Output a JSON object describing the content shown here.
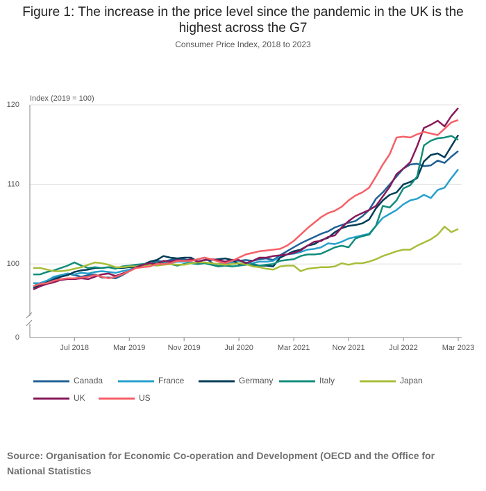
{
  "chart_data": {
    "type": "line",
    "title": "Figure 1: The increase in the price level since the pandemic in the UK is the highest across the G7",
    "subtitle": "Consumer Price Index, 2018 to 2023",
    "y_label": "Index (2019 = 100)",
    "source": "Source: Organisation for Economic Co-operation and Development (OECD and the Office for National Statistics",
    "x": [
      "2018-01",
      "2018-02",
      "2018-03",
      "2018-04",
      "2018-05",
      "2018-06",
      "2018-07",
      "2018-08",
      "2018-09",
      "2018-10",
      "2018-11",
      "2018-12",
      "2019-01",
      "2019-02",
      "2019-03",
      "2019-04",
      "2019-05",
      "2019-06",
      "2019-07",
      "2019-08",
      "2019-09",
      "2019-10",
      "2019-11",
      "2019-12",
      "2020-01",
      "2020-02",
      "2020-03",
      "2020-04",
      "2020-05",
      "2020-06",
      "2020-07",
      "2020-08",
      "2020-09",
      "2020-10",
      "2020-11",
      "2020-12",
      "2021-01",
      "2021-02",
      "2021-03",
      "2021-04",
      "2021-05",
      "2021-06",
      "2021-07",
      "2021-08",
      "2021-09",
      "2021-10",
      "2021-11",
      "2021-12",
      "2022-01",
      "2022-02",
      "2022-03",
      "2022-04",
      "2022-05",
      "2022-06",
      "2022-07",
      "2022-08",
      "2022-09",
      "2022-10",
      "2022-11",
      "2022-12",
      "2023-01",
      "2023-02",
      "2023-03"
    ],
    "xlim": [
      "2018-01",
      "2023-03"
    ],
    "xticks": [
      {
        "value": "2018-07",
        "label": "Jul 2018"
      },
      {
        "value": "2019-03",
        "label": "Mar 2019"
      },
      {
        "value": "2019-11",
        "label": "Nov 2019"
      },
      {
        "value": "2020-07",
        "label": "Jul 2020"
      },
      {
        "value": "2021-03",
        "label": "Mar 2021"
      },
      {
        "value": "2021-11",
        "label": "Nov 2021"
      },
      {
        "value": "2022-07",
        "label": "Jul 2022"
      },
      {
        "value": "2023-03",
        "label": "Mar 2023"
      }
    ],
    "ylim": [
      0,
      120
    ],
    "yticks": [
      0,
      100,
      110,
      120
    ],
    "y_break": [
      0,
      96
    ],
    "grid": true,
    "series": [
      {
        "name": "Canada",
        "color": "#206095",
        "values": [
          97.2,
          97.6,
          97.9,
          98.2,
          98.6,
          98.8,
          98.6,
          98.4,
          98.6,
          98.7,
          98.3,
          98.3,
          98.2,
          98.6,
          99.1,
          99.6,
          99.9,
          100.0,
          100.4,
          100.3,
          100.5,
          100.7,
          100.6,
          100.4,
          100.6,
          100.8,
          100.2,
          99.7,
          100.0,
          100.3,
          100.4,
          100.5,
          100.4,
          100.6,
          100.7,
          100.5,
          101.1,
          101.6,
          102.1,
          102.6,
          103.0,
          103.4,
          103.8,
          104.1,
          104.6,
          104.9,
          105.2,
          105.4,
          106.0,
          106.8,
          108.2,
          109.0,
          110.0,
          111.0,
          112.0,
          112.5,
          112.6,
          112.3,
          112.4,
          113.0,
          112.7,
          113.5,
          114.2
        ]
      },
      {
        "name": "France",
        "color": "#27a0cc",
        "values": [
          97.6,
          97.6,
          97.9,
          98.4,
          98.6,
          98.8,
          98.7,
          98.9,
          98.8,
          99.0,
          99.1,
          99.0,
          98.9,
          99.1,
          99.3,
          99.6,
          99.8,
          100.0,
          100.1,
          100.2,
          100.1,
          100.3,
          100.3,
          100.2,
          100.1,
          100.2,
          100.0,
          100.0,
          100.1,
          100.2,
          100.4,
          100.2,
          100.1,
          100.3,
          100.3,
          100.4,
          100.9,
          101.2,
          101.3,
          101.5,
          101.8,
          101.9,
          102.1,
          102.6,
          102.5,
          102.8,
          103.2,
          103.4,
          103.6,
          103.8,
          104.8,
          105.8,
          106.3,
          106.8,
          107.5,
          108.0,
          108.2,
          108.7,
          108.3,
          109.3,
          109.6,
          110.8,
          111.9
        ]
      },
      {
        "name": "Germany",
        "color": "#003c57",
        "values": [
          97.0,
          97.3,
          97.7,
          98.0,
          98.4,
          98.6,
          99.0,
          99.2,
          99.3,
          99.5,
          99.5,
          99.6,
          99.5,
          99.5,
          99.6,
          99.6,
          99.9,
          100.3,
          100.5,
          101.0,
          100.8,
          100.7,
          100.8,
          100.8,
          100.3,
          100.5,
          100.5,
          100.6,
          100.7,
          100.5,
          100.0,
          100.0,
          99.9,
          99.8,
          99.8,
          99.7,
          100.8,
          101.2,
          101.6,
          101.8,
          102.3,
          102.5,
          103.0,
          103.3,
          104.0,
          104.5,
          104.8,
          104.9,
          105.1,
          105.6,
          107.0,
          108.0,
          108.7,
          109.0,
          110.0,
          110.3,
          110.8,
          112.9,
          113.7,
          113.9,
          113.4,
          114.8,
          116.2
        ]
      },
      {
        "name": "Italy",
        "color": "#118c7b",
        "values": [
          98.7,
          98.7,
          99.0,
          99.2,
          99.5,
          99.8,
          100.2,
          99.8,
          99.5,
          99.6,
          99.5,
          99.6,
          99.4,
          99.7,
          99.8,
          99.9,
          100.0,
          100.0,
          100.2,
          100.1,
          100.0,
          99.8,
          100.0,
          100.1,
          100.0,
          100.1,
          99.9,
          99.7,
          99.8,
          99.7,
          99.8,
          99.9,
          100.0,
          99.8,
          99.9,
          100.0,
          100.4,
          100.5,
          100.6,
          101.0,
          101.2,
          101.2,
          101.3,
          101.7,
          102.1,
          102.3,
          102.1,
          103.2,
          103.5,
          103.7,
          104.8,
          107.3,
          107.1,
          108.0,
          109.5,
          109.9,
          111.0,
          114.9,
          115.5,
          115.8,
          115.9,
          116.1,
          115.6
        ]
      },
      {
        "name": "Japan",
        "color": "#a8bd3a",
        "values": [
          99.5,
          99.5,
          99.3,
          99.1,
          99.1,
          99.2,
          99.4,
          99.6,
          99.9,
          100.2,
          100.1,
          99.9,
          99.6,
          99.6,
          99.7,
          99.7,
          99.8,
          99.9,
          99.8,
          99.9,
          100.0,
          99.9,
          99.9,
          100.1,
          100.2,
          100.2,
          100.1,
          100.0,
          99.9,
          100.0,
          100.1,
          100.0,
          99.7,
          99.6,
          99.4,
          99.3,
          99.7,
          99.8,
          99.8,
          99.1,
          99.4,
          99.5,
          99.6,
          99.6,
          99.7,
          100.1,
          99.9,
          100.1,
          100.1,
          100.3,
          100.6,
          101.0,
          101.3,
          101.6,
          101.8,
          101.8,
          102.3,
          102.7,
          103.1,
          103.7,
          104.7,
          104.0,
          104.4
        ]
      },
      {
        "name": "UK",
        "color": "#871a5b",
        "values": [
          96.8,
          97.2,
          97.5,
          97.7,
          98.0,
          98.1,
          98.1,
          98.2,
          98.1,
          98.4,
          98.7,
          98.8,
          98.5,
          98.8,
          99.1,
          99.6,
          99.9,
          100.1,
          100.0,
          100.4,
          100.3,
          100.5,
          100.4,
          100.6,
          100.3,
          100.5,
          100.6,
          100.5,
          100.3,
          100.5,
          100.5,
          100.1,
          100.4,
          100.8,
          100.8,
          101.0,
          101.1,
          101.2,
          101.4,
          101.7,
          102.3,
          102.8,
          102.9,
          103.4,
          103.6,
          104.6,
          105.4,
          106.0,
          106.4,
          106.8,
          107.3,
          108.5,
          109.7,
          111.3,
          112.0,
          112.8,
          114.8,
          117.1,
          117.5,
          118.0,
          117.3,
          118.6,
          119.6
        ]
      },
      {
        "name": "US",
        "color": "#f66068",
        "values": [
          97.2,
          97.5,
          97.6,
          97.9,
          98.1,
          98.2,
          98.2,
          98.3,
          98.4,
          98.6,
          98.4,
          98.2,
          98.4,
          98.7,
          99.1,
          99.5,
          99.6,
          99.7,
          100.0,
          100.0,
          100.1,
          100.4,
          100.4,
          100.4,
          100.6,
          100.8,
          100.6,
          100.3,
          100.1,
          100.4,
          100.8,
          101.2,
          101.4,
          101.6,
          101.7,
          101.8,
          101.9,
          102.3,
          102.9,
          103.7,
          104.5,
          105.2,
          105.9,
          106.4,
          106.7,
          107.2,
          108.0,
          108.6,
          109.0,
          109.6,
          111.0,
          112.5,
          113.8,
          115.9,
          116.0,
          115.9,
          116.3,
          116.6,
          116.4,
          116.2,
          117.0,
          117.8,
          118.1
        ]
      }
    ]
  }
}
